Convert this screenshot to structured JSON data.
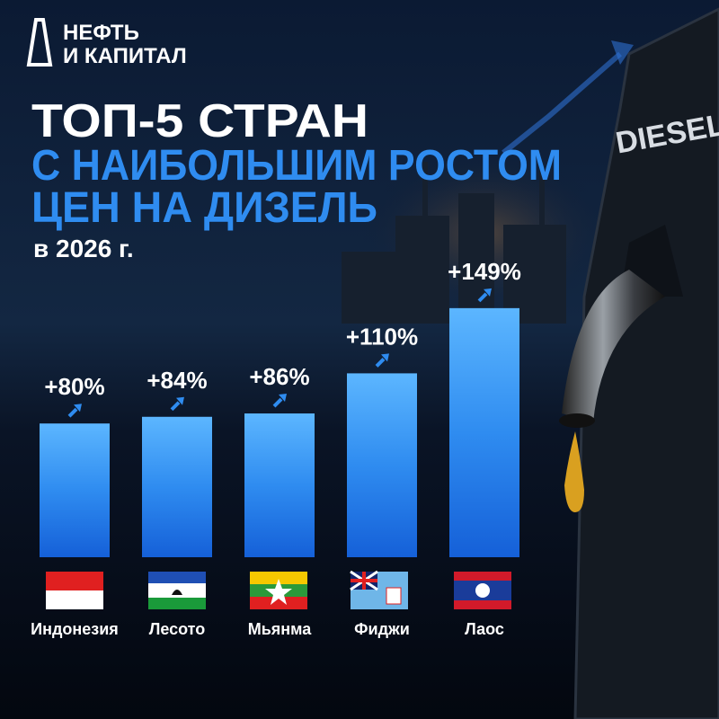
{
  "chart_data": {
    "type": "bar",
    "logo": [
      "НЕФТЬ",
      "И КАПИТАЛ"
    ],
    "title": [
      "ТОП-5 СТРАН",
      "С НАИБОЛЬШИМ РОСТОМ",
      "ЦЕН НА ДИЗЕЛЬ"
    ],
    "subtitle": "в 2026 г.",
    "annotation": "DIESEL",
    "categories": [
      "Индонезия",
      "Лесото",
      "Мьянма",
      "Фиджи",
      "Лаос"
    ],
    "values": [
      80,
      84,
      86,
      110,
      149
    ],
    "value_labels": [
      "+80%",
      "+84%",
      "+86%",
      "+110%",
      "+149%"
    ],
    "color": "#2f8cf0"
  }
}
